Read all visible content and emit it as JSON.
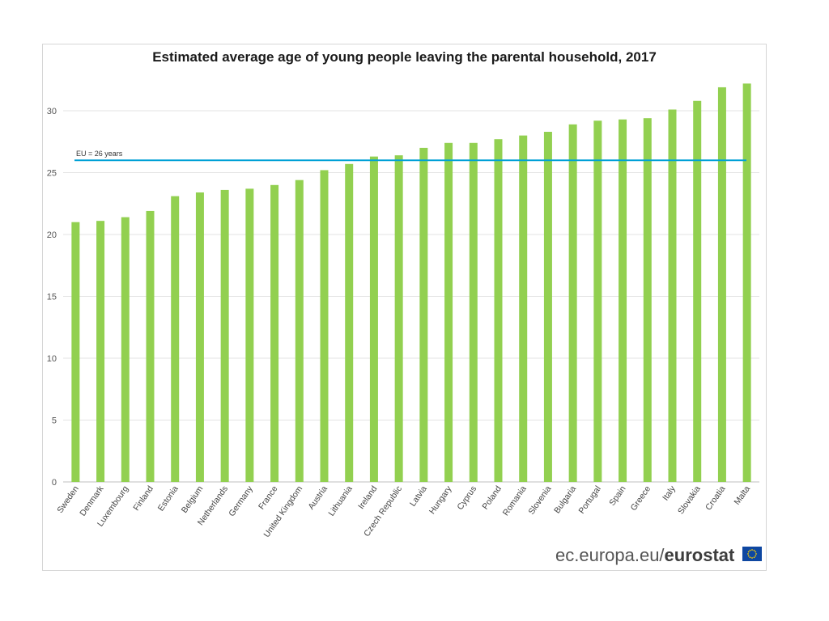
{
  "chart_data": {
    "type": "bar",
    "title": "Estimated average age of young people leaving the parental household, 2017",
    "categories": [
      "Sweden",
      "Denmark",
      "Luxembourg",
      "Finland",
      "Estonia",
      "Belgium",
      "Netherlands",
      "Germany",
      "France",
      "United Kingdom",
      "Austria",
      "Lithuania",
      "Ireland",
      "Czech Republic",
      "Latvia",
      "Hungary",
      "Cyprus",
      "Poland",
      "Romania",
      "Slovenia",
      "Bulgaria",
      "Portugal",
      "Spain",
      "Greece",
      "Italy",
      "Slovakia",
      "Croatia",
      "Malta"
    ],
    "values": [
      21.0,
      21.1,
      21.4,
      21.9,
      23.1,
      23.4,
      23.6,
      23.7,
      24.0,
      24.4,
      25.2,
      25.7,
      26.3,
      26.4,
      27.0,
      27.4,
      27.4,
      27.7,
      28.0,
      28.3,
      28.9,
      29.2,
      29.3,
      29.4,
      30.1,
      30.8,
      31.9,
      32.2
    ],
    "ylim": [
      0,
      33
    ],
    "yticks": [
      0,
      5,
      10,
      15,
      20,
      25,
      30
    ],
    "grid": true,
    "bar_color": "#92d050",
    "reference_line": {
      "value": 26,
      "label": "EU = 26 years",
      "color": "#00a1d6"
    }
  },
  "footer": {
    "site": "ec.europa.eu/",
    "brand": "eurostat",
    "flag_icon": "eu-flag-icon"
  }
}
